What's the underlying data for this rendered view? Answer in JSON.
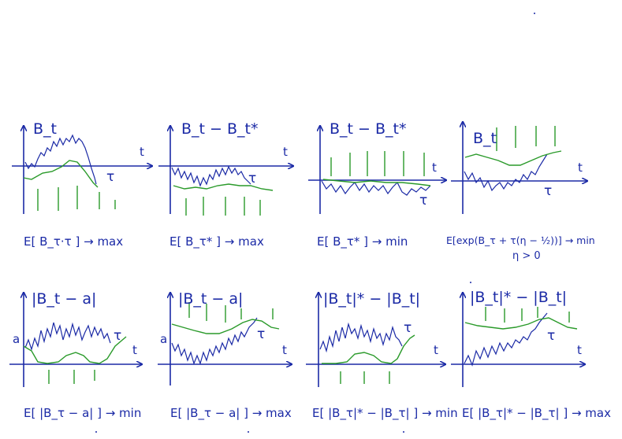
{
  "colors": {
    "ink": "#1b2aa6",
    "green": "#2a9a2a"
  },
  "panels": [
    {
      "label": "B_t",
      "axis_t": "t",
      "tau": "τ",
      "a": "",
      "formula": "E[ B_τ·τ ] → max"
    },
    {
      "label": "B_t − B_t*",
      "axis_t": "t",
      "tau": "τ",
      "a": "",
      "formula": "E[ B_τ* ] → max"
    },
    {
      "label": "B_t − B_t*",
      "axis_t": "t",
      "tau": "τ",
      "a": "",
      "formula": "E[ B_τ* ] → min"
    },
    {
      "label": "B_t",
      "axis_t": "t",
      "tau": "τ",
      "a": "",
      "formula": "E[exp(B_τ + τ(η − ½))] → min",
      "formula2": "η > 0"
    },
    {
      "label": "|B_t − a|",
      "axis_t": "t",
      "tau": "τ",
      "a": "a",
      "formula": "E[ |B_τ − a| ] → min"
    },
    {
      "label": "|B_t − a|",
      "axis_t": "t",
      "tau": "τ",
      "a": "a",
      "formula": "E[ |B_τ − a| ] → max"
    },
    {
      "label": "|B_t|* − |B_t|",
      "axis_t": "t",
      "tau": "τ",
      "a": "",
      "formula": "E[ |B_τ|* − |B_τ| ] → min"
    },
    {
      "label": "|B_t|* − |B_t|",
      "axis_t": "t",
      "tau": "τ",
      "a": "",
      "formula": "E[ |B_τ|* − |B_τ| ] → max"
    }
  ]
}
